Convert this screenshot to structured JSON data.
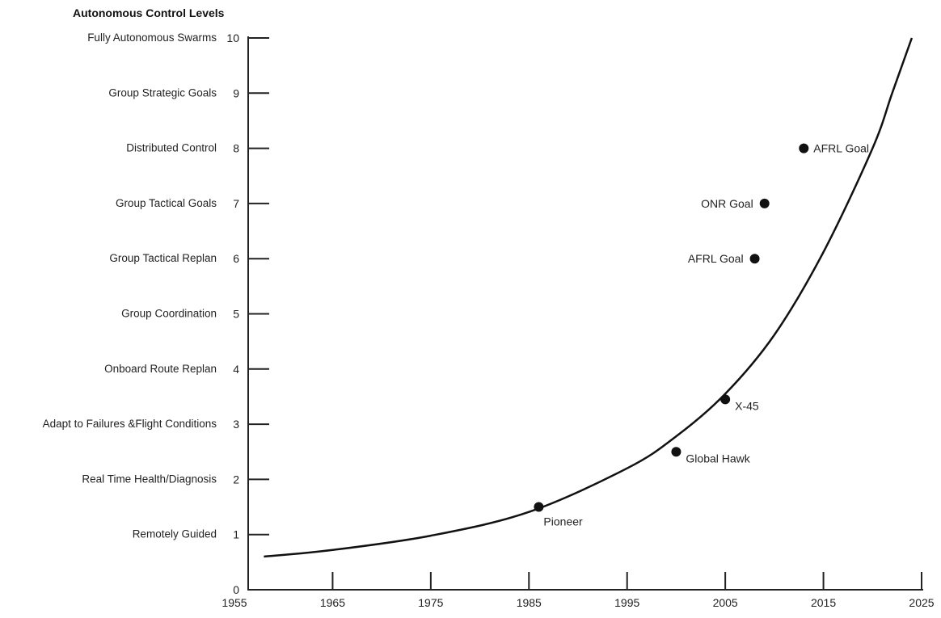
{
  "chart_data": {
    "type": "scatter",
    "title": "Autonomous  Control  Levels",
    "xlabel": "",
    "ylabel": "",
    "xlim": [
      1955,
      2025
    ],
    "ylim": [
      0,
      10
    ],
    "x_ticks": [
      "1955",
      "1965",
      "1975",
      "1985",
      "1995",
      "2005",
      "2015",
      "2025"
    ],
    "y_ticks": [
      "0",
      "1",
      "2",
      "3",
      "4",
      "5",
      "6",
      "7",
      "8",
      "9",
      "10"
    ],
    "levels": [
      {
        "level": 1,
        "name": "Remotely Guided"
      },
      {
        "level": 2,
        "name": "Real Time Health/Diagnosis"
      },
      {
        "level": 3,
        "name": "Adapt to Failures &Flight Conditions"
      },
      {
        "level": 4,
        "name": "Onboard Route Replan"
      },
      {
        "level": 5,
        "name": "Group Coordination"
      },
      {
        "level": 6,
        "name": "Group Tactical Replan"
      },
      {
        "level": 7,
        "name": "Group Tactical Goals"
      },
      {
        "level": 8,
        "name": "Distributed Control"
      },
      {
        "level": 9,
        "name": "Group Strategic Goals"
      },
      {
        "level": 10,
        "name": "Fully Autonomous Swarms"
      }
    ],
    "points": [
      {
        "label": "Pioneer",
        "x": 1986,
        "y": 1.5,
        "label_pos": "below-right"
      },
      {
        "label": "Global Hawk",
        "x": 2000,
        "y": 2.5,
        "label_pos": "right"
      },
      {
        "label": "X-45",
        "x": 2005,
        "y": 3.45,
        "label_pos": "right"
      },
      {
        "label": "AFRL Goal",
        "x": 2008,
        "y": 6.0,
        "label_pos": "left"
      },
      {
        "label": "ONR Goal",
        "x": 2009,
        "y": 7.0,
        "label_pos": "left"
      },
      {
        "label": "AFRL Goal",
        "x": 2013,
        "y": 8.0,
        "label_pos": "right"
      }
    ],
    "curve": {
      "type": "line",
      "x": [
        1958,
        1965,
        1975,
        1985,
        1995,
        2000,
        2005,
        2010,
        2015,
        2020,
        2022,
        2024
      ],
      "y": [
        0.6,
        0.72,
        0.98,
        1.41,
        2.2,
        2.78,
        3.55,
        4.62,
        6.12,
        8.0,
        9.0,
        10.0
      ]
    },
    "grid": false,
    "legend": "none"
  }
}
